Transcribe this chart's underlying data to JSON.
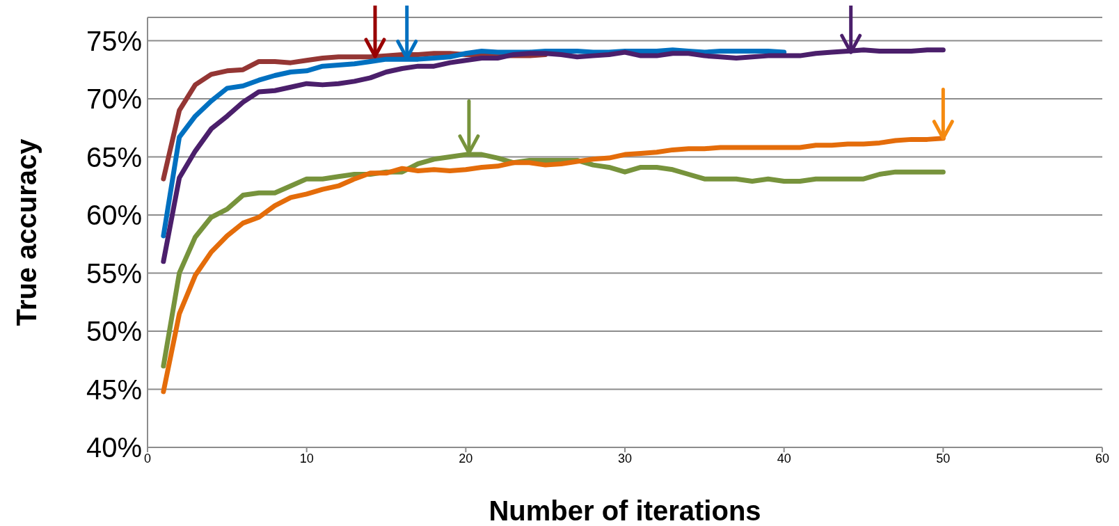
{
  "chart_data": {
    "type": "line",
    "xlabel": "Number of iterations",
    "ylabel": "True accuracy",
    "x": [
      1,
      2,
      3,
      4,
      5,
      6,
      7,
      8,
      9,
      10,
      11,
      12,
      13,
      14,
      15,
      16,
      17,
      18,
      19,
      20,
      21,
      22,
      23,
      24,
      25,
      26,
      27,
      28,
      29,
      30,
      31,
      32,
      33,
      34,
      35,
      36,
      37,
      38,
      39,
      40,
      41,
      42,
      43,
      44,
      45,
      46,
      47,
      48,
      49,
      50
    ],
    "series": [
      {
        "color": "#943634",
        "x": [
          1,
          2,
          3,
          4,
          5,
          6,
          7,
          8,
          9,
          10,
          11,
          12,
          13,
          14,
          15,
          16,
          17,
          18,
          19,
          20,
          21,
          22,
          23,
          24,
          25
        ],
        "values": [
          63.1,
          69,
          71.2,
          72.1,
          72.4,
          72.5,
          73.2,
          73.2,
          73.1,
          73.3,
          73.5,
          73.6,
          73.6,
          73.6,
          73.7,
          73.8,
          73.8,
          73.9,
          73.9,
          73.8,
          73.8,
          73.7,
          73.7,
          73.7,
          73.8
        ]
      },
      {
        "color": "#0070c0",
        "x": [
          1,
          2,
          3,
          4,
          5,
          6,
          7,
          8,
          9,
          10,
          11,
          12,
          13,
          14,
          15,
          16,
          17,
          18,
          19,
          20,
          21,
          22,
          23,
          24,
          25,
          26,
          27,
          28,
          29,
          30,
          31,
          32,
          33,
          34,
          35,
          36,
          37,
          38,
          39,
          40
        ],
        "values": [
          58.2,
          66.7,
          68.5,
          69.8,
          70.9,
          71.1,
          71.6,
          72,
          72.3,
          72.4,
          72.8,
          72.9,
          73,
          73.2,
          73.4,
          73.4,
          73.4,
          73.5,
          73.6,
          73.9,
          74.1,
          74,
          74,
          74,
          74.1,
          74.1,
          74.1,
          74,
          74,
          74.1,
          74.1,
          74.1,
          74.2,
          74.1,
          74,
          74.1,
          74.1,
          74.1,
          74.1,
          74
        ]
      },
      {
        "color": "#4b1f6b",
        "values": [
          56,
          63.2,
          65.5,
          67.4,
          68.5,
          69.7,
          70.6,
          70.7,
          71,
          71.3,
          71.2,
          71.3,
          71.5,
          71.8,
          72.3,
          72.6,
          72.8,
          72.8,
          73.1,
          73.3,
          73.5,
          73.5,
          73.8,
          73.9,
          73.9,
          73.8,
          73.6,
          73.7,
          73.8,
          74,
          73.7,
          73.7,
          73.9,
          73.9,
          73.7,
          73.6,
          73.5,
          73.6,
          73.7,
          73.7,
          73.7,
          73.9,
          74,
          74.1,
          74.2,
          74.1,
          74.1,
          74.1,
          74.2,
          74.2
        ]
      },
      {
        "color": "#77933c",
        "values": [
          47,
          55,
          58.1,
          59.8,
          60.5,
          61.7,
          61.9,
          61.9,
          62.5,
          63.1,
          63.1,
          63.3,
          63.5,
          63.5,
          63.7,
          63.7,
          64.4,
          64.8,
          65,
          65.2,
          65.2,
          64.9,
          64.5,
          64.7,
          64.7,
          64.7,
          64.7,
          64.3,
          64.1,
          63.7,
          64.1,
          64.1,
          63.9,
          63.5,
          63.1,
          63.1,
          63.1,
          62.9,
          63.1,
          62.9,
          62.9,
          63.1,
          63.1,
          63.1,
          63.1,
          63.5,
          63.7,
          63.7,
          63.7,
          63.7
        ]
      },
      {
        "color": "#e46c0a",
        "values": [
          44.8,
          51.5,
          54.8,
          56.8,
          58.2,
          59.3,
          59.8,
          60.8,
          61.5,
          61.8,
          62.2,
          62.5,
          63.1,
          63.6,
          63.6,
          64,
          63.8,
          63.9,
          63.8,
          63.9,
          64.1,
          64.2,
          64.5,
          64.5,
          64.3,
          64.4,
          64.6,
          64.8,
          64.9,
          65.2,
          65.3,
          65.4,
          65.6,
          65.7,
          65.7,
          65.8,
          65.8,
          65.8,
          65.8,
          65.8,
          65.8,
          66,
          66,
          66.1,
          66.1,
          66.2,
          66.4,
          66.5,
          66.5,
          66.6
        ]
      }
    ],
    "xlim": [
      0,
      60
    ],
    "xticks": [
      0,
      10,
      20,
      30,
      40,
      50,
      60
    ],
    "ylim": [
      40,
      77
    ],
    "yticks": [
      {
        "value": 40,
        "label": "40%"
      },
      {
        "value": 45,
        "label": "45%"
      },
      {
        "value": 50,
        "label": "50%"
      },
      {
        "value": 55,
        "label": "55%"
      },
      {
        "value": 60,
        "label": "60%"
      },
      {
        "value": 65,
        "label": "65%"
      },
      {
        "value": 70,
        "label": "70%"
      },
      {
        "value": 75,
        "label": "75%"
      }
    ],
    "grid": "y",
    "marker": "none",
    "line_style": "solid"
  }
}
